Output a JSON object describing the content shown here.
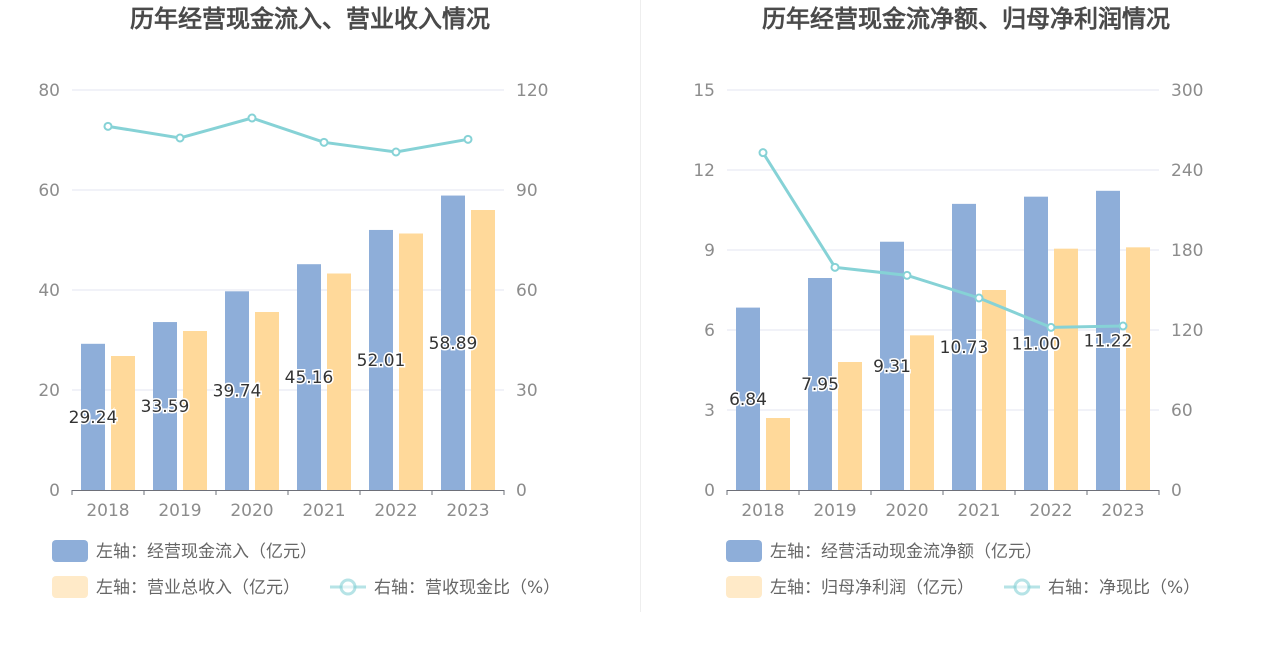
{
  "chart_data": [
    {
      "type": "bar",
      "title": "历年经营现金流入、营业收入情况",
      "categories": [
        "2018",
        "2019",
        "2020",
        "2021",
        "2022",
        "2023"
      ],
      "left_axis": {
        "min": 0,
        "max": 80,
        "ticks": [
          "0",
          "20",
          "40",
          "60",
          "80"
        ]
      },
      "right_axis": {
        "min": 0,
        "max": 120,
        "ticks": [
          "0",
          "30",
          "60",
          "90",
          "120"
        ]
      },
      "series": [
        {
          "name": "左轴：经营现金流入（亿元）",
          "type": "bar",
          "axis": "left",
          "color": "#8eaed9",
          "values": [
            29.24,
            33.59,
            39.74,
            45.16,
            52.01,
            58.89
          ],
          "labels": [
            "29.24",
            "33.59",
            "39.74",
            "45.16",
            "52.01",
            "58.89"
          ]
        },
        {
          "name": "左轴：营业总收入（亿元）",
          "type": "bar",
          "axis": "left",
          "color": "#ffd99a",
          "values": [
            26.8,
            31.8,
            35.6,
            43.3,
            51.3,
            56.0
          ]
        },
        {
          "name": "右轴：营收现金比（%）",
          "type": "line",
          "axis": "right",
          "color": "#86d2d6",
          "values": [
            109.1,
            105.6,
            111.6,
            104.3,
            101.4,
            105.2
          ]
        }
      ]
    },
    {
      "type": "bar",
      "title": "历年经营现金流净额、归母净利润情况",
      "categories": [
        "2018",
        "2019",
        "2020",
        "2021",
        "2022",
        "2023"
      ],
      "left_axis": {
        "min": 0,
        "max": 15,
        "ticks": [
          "0",
          "3",
          "6",
          "9",
          "12",
          "15"
        ]
      },
      "right_axis": {
        "min": 0,
        "max": 300,
        "ticks": [
          "0",
          "60",
          "120",
          "180",
          "240",
          "300"
        ]
      },
      "series": [
        {
          "name": "左轴：经营活动现金流净额（亿元）",
          "type": "bar",
          "axis": "left",
          "color": "#8eaed9",
          "values": [
            6.84,
            7.95,
            9.31,
            10.73,
            11.0,
            11.22
          ],
          "labels": [
            "6.84",
            "7.95",
            "9.31",
            "10.73",
            "11.00",
            "11.22"
          ]
        },
        {
          "name": "左轴：归母净利润（亿元）",
          "type": "bar",
          "axis": "left",
          "color": "#ffd99a",
          "values": [
            2.7,
            4.8,
            5.8,
            7.5,
            9.05,
            9.1
          ]
        },
        {
          "name": "右轴：净现比（%）",
          "type": "line",
          "axis": "right",
          "color": "#86d2d6",
          "values": [
            253,
            167,
            161,
            144,
            122,
            123
          ]
        }
      ]
    }
  ]
}
